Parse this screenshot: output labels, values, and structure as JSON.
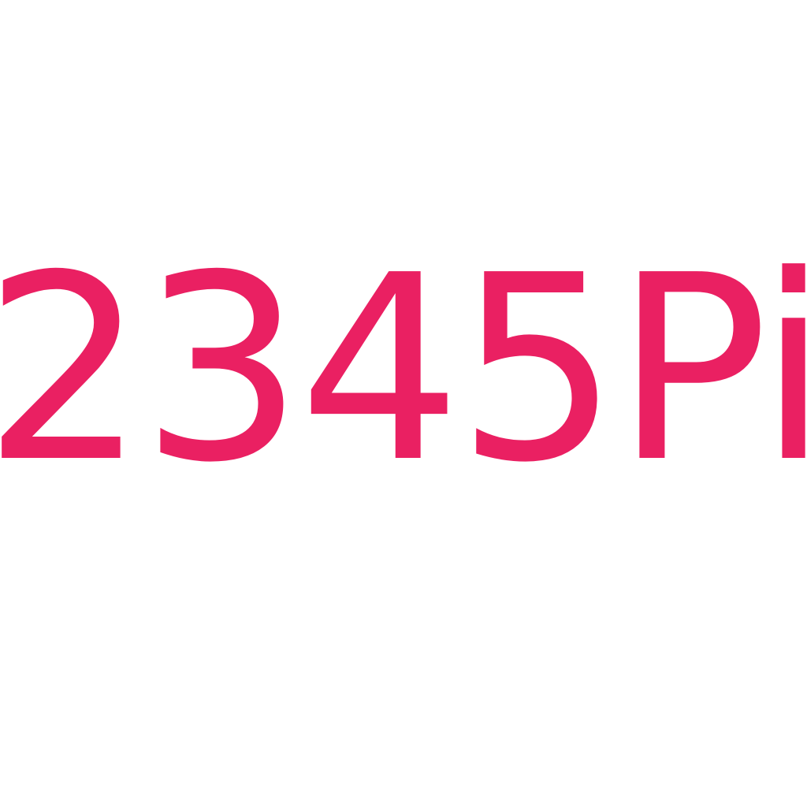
{
  "logo": {
    "text": "2345Pi",
    "color": "#ea2062"
  },
  "background_color": "#ffffff"
}
